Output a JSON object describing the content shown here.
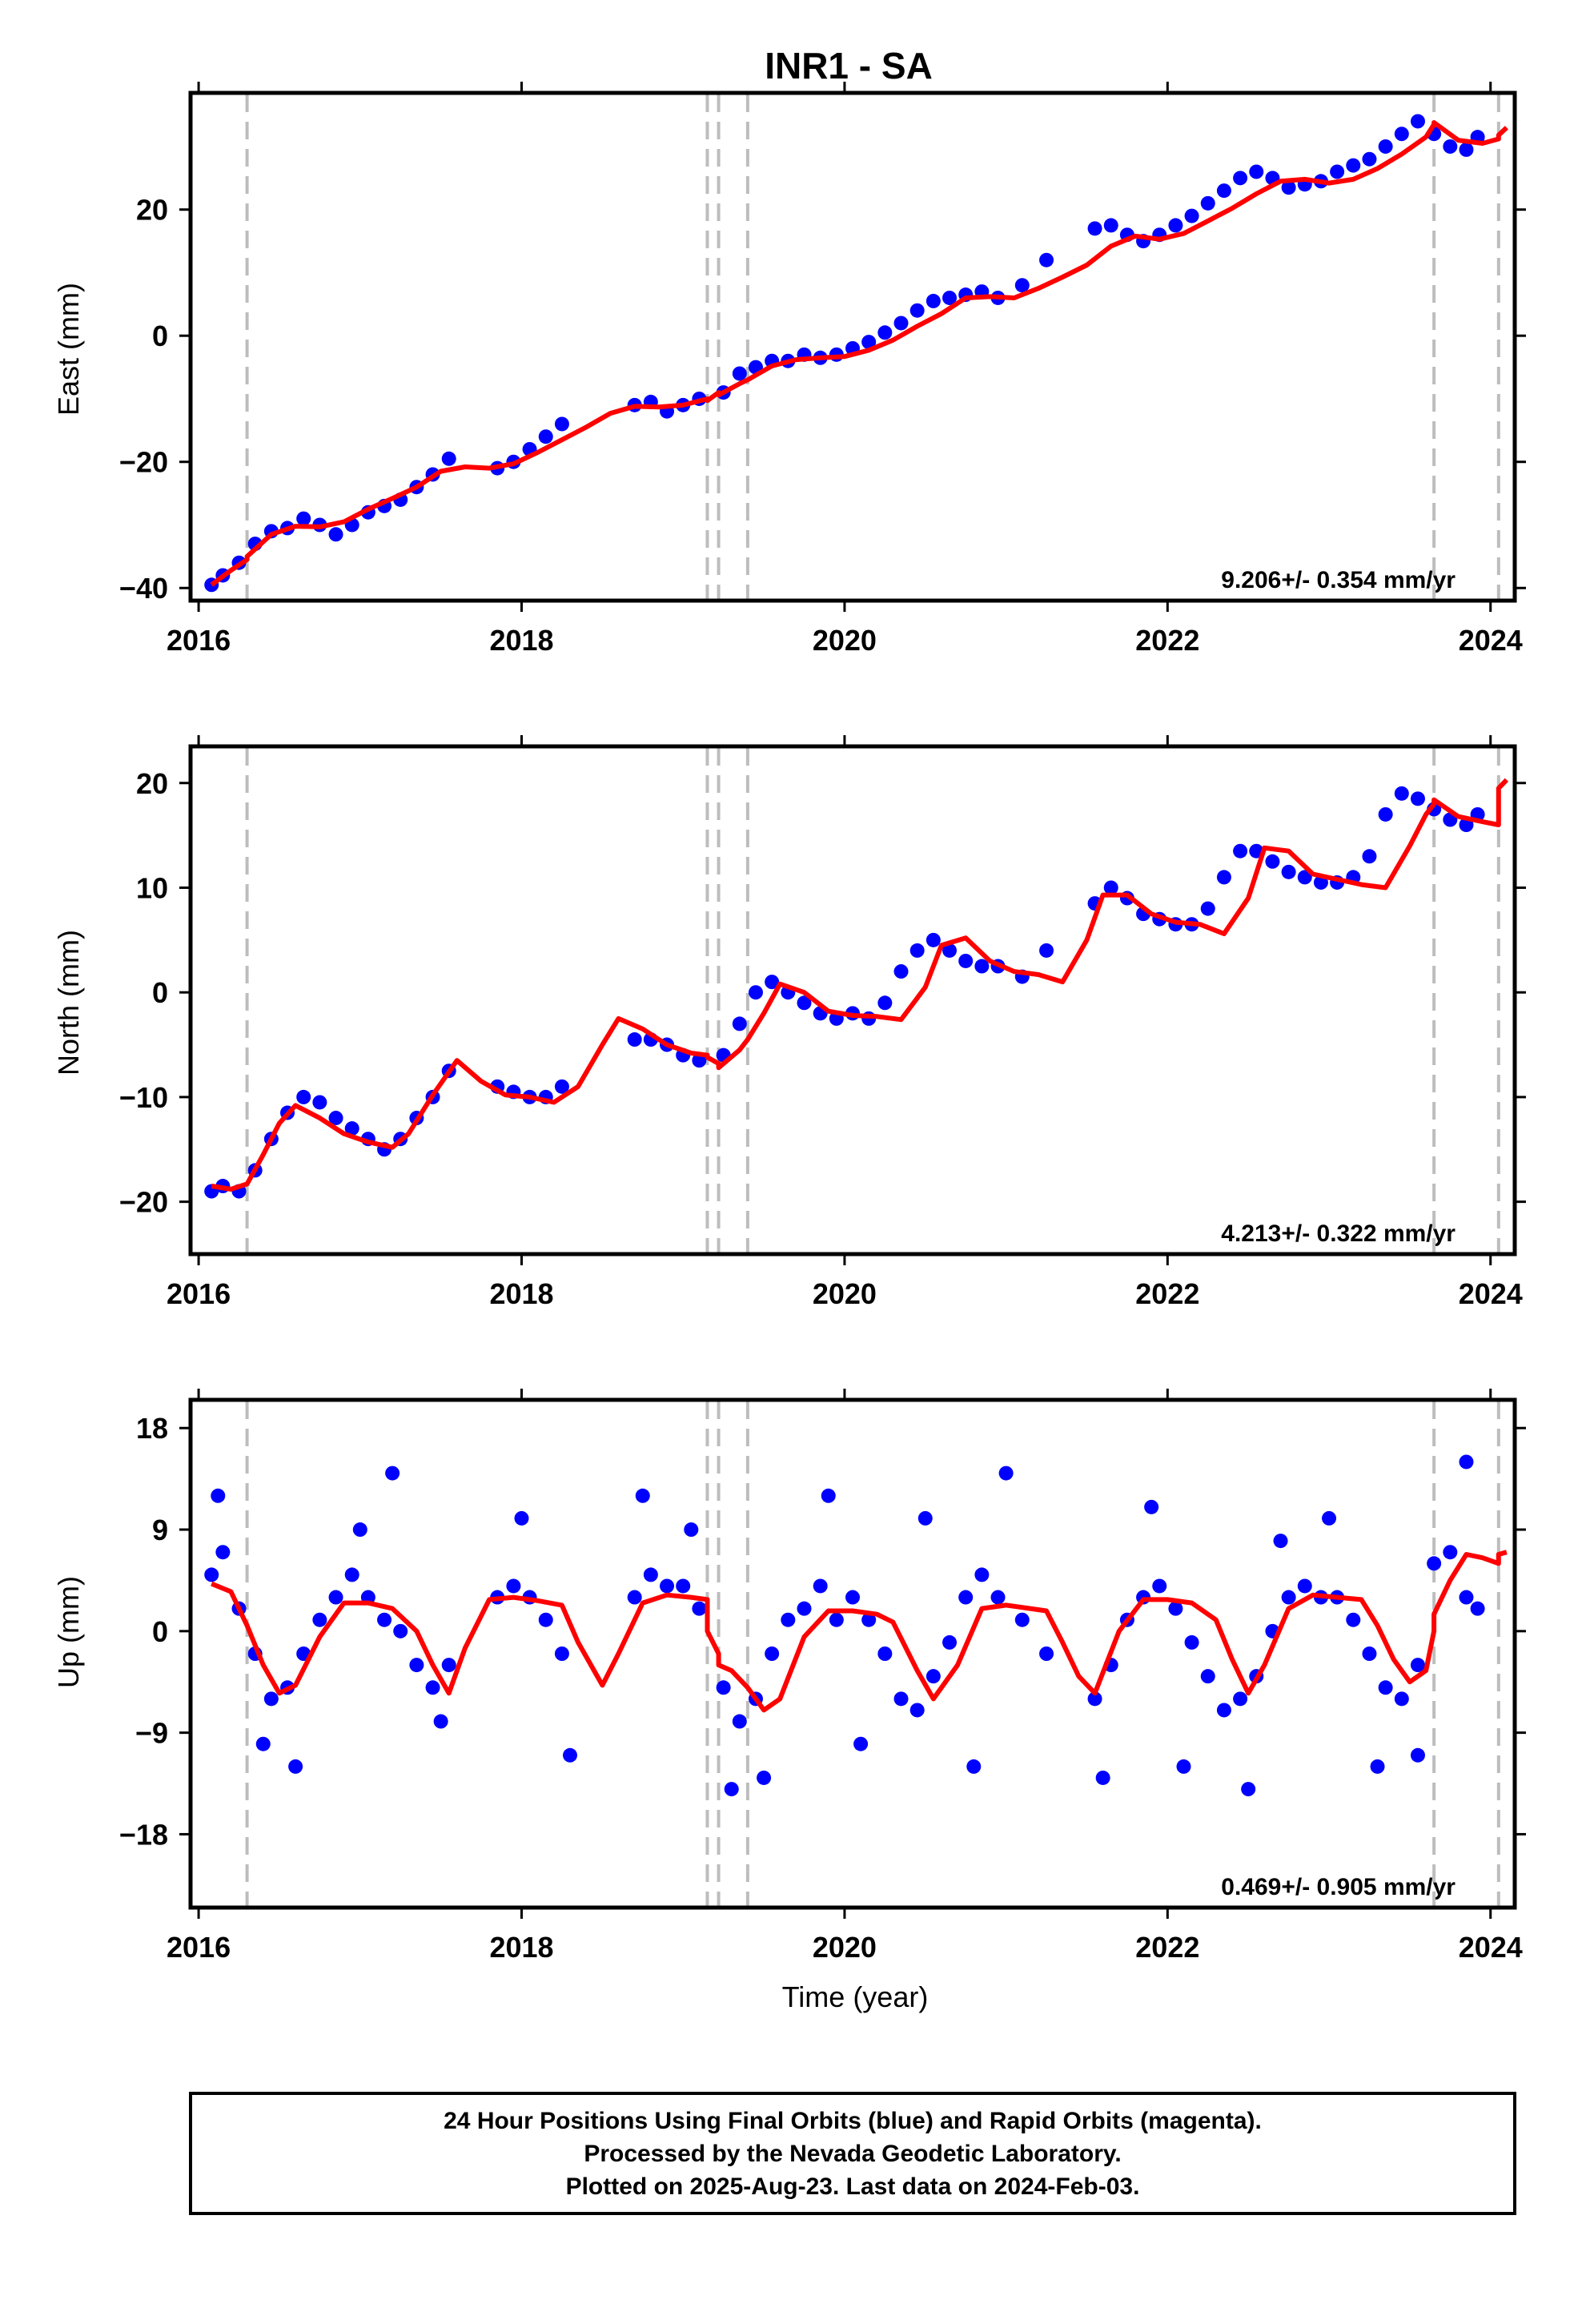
{
  "chart_data": [
    {
      "type": "scatter",
      "title": "INR1 - SA",
      "ylabel": "East (mm)",
      "xlabel": "",
      "xlim": [
        2015.95,
        2024.15
      ],
      "ylim": [
        -42,
        38.5
      ],
      "xticks": [
        2016,
        2018,
        2020,
        2022,
        2024
      ],
      "yticks": [
        -40,
        -20,
        0,
        20
      ],
      "ytick_labels": [
        "−40",
        "−20",
        "0",
        "20"
      ],
      "rate_text": "9.206+/- 0.354 mm/yr",
      "grid": false,
      "event_lines_x": [
        2016.3,
        2019.15,
        2019.22,
        2019.4,
        2023.65,
        2024.05
      ],
      "series": [
        {
          "kind": "points",
          "color": "#0000ff",
          "x": [
            2016.08,
            2016.15,
            2016.25,
            2016.35,
            2016.45,
            2016.55,
            2016.65,
            2016.75,
            2016.85,
            2016.95,
            2017.05,
            2017.15,
            2017.25,
            2017.35,
            2017.45,
            2017.55,
            2017.85,
            2017.95,
            2018.05,
            2018.15,
            2018.25,
            2018.7,
            2018.8,
            2018.9,
            2019.0,
            2019.1,
            2019.25,
            2019.35,
            2019.45,
            2019.55,
            2019.65,
            2019.75,
            2019.85,
            2019.95,
            2020.05,
            2020.15,
            2020.25,
            2020.35,
            2020.45,
            2020.55,
            2020.65,
            2020.75,
            2020.85,
            2020.95,
            2021.1,
            2021.25,
            2021.55,
            2021.65,
            2021.75,
            2021.85,
            2021.95,
            2022.05,
            2022.15,
            2022.25,
            2022.35,
            2022.45,
            2022.55,
            2022.65,
            2022.75,
            2022.85,
            2022.95,
            2023.05,
            2023.15,
            2023.25,
            2023.35,
            2023.45,
            2023.55,
            2023.65,
            2023.75,
            2023.85,
            2023.92
          ],
          "y": [
            -39.5,
            -38,
            -36,
            -33,
            -31,
            -30.5,
            -29,
            -30,
            -31.5,
            -30,
            -28,
            -27,
            -26,
            -24,
            -22,
            -19.5,
            -21,
            -20,
            -18,
            -16,
            -14,
            -11,
            -10.5,
            -12,
            -11,
            -10,
            -9,
            -6,
            -5,
            -4,
            -4,
            -3,
            -3.5,
            -3,
            -2,
            -1,
            0.5,
            2,
            4,
            5.5,
            6,
            6.5,
            7,
            6,
            8,
            12,
            17,
            17.5,
            16,
            15,
            16,
            17.5,
            19,
            21,
            23,
            25,
            26,
            25,
            23.5,
            24,
            24.5,
            26,
            27,
            28,
            30,
            32,
            34,
            32,
            30,
            29.5,
            31.5
          ]
        },
        {
          "kind": "model",
          "color": "#ff0000",
          "x": [
            2016.08,
            2016.2,
            2016.3,
            2016.3,
            2016.45,
            2016.6,
            2016.75,
            2016.9,
            2017.05,
            2017.2,
            2017.35,
            2017.5,
            2017.65,
            2017.8,
            2017.95,
            2018.1,
            2018.25,
            2018.4,
            2018.55,
            2018.7,
            2018.85,
            2019.0,
            2019.15,
            2019.15,
            2019.22,
            2019.22,
            2019.35,
            2019.4,
            2019.4,
            2019.55,
            2019.7,
            2019.85,
            2020.0,
            2020.15,
            2020.3,
            2020.45,
            2020.6,
            2020.75,
            2020.9,
            2021.05,
            2021.2,
            2021.35,
            2021.5,
            2021.65,
            2021.8,
            2021.95,
            2022.1,
            2022.25,
            2022.4,
            2022.55,
            2022.7,
            2022.85,
            2023.0,
            2023.15,
            2023.3,
            2023.45,
            2023.6,
            2023.65,
            2023.65,
            2023.8,
            2023.95,
            2024.05,
            2024.05,
            2024.1
          ],
          "y": [
            -39.5,
            -37.2,
            -35.5,
            -35.0,
            -31.5,
            -30.2,
            -30.3,
            -29.5,
            -27.5,
            -25.8,
            -24.0,
            -21.5,
            -20.8,
            -21.0,
            -20.3,
            -18.5,
            -16.5,
            -14.5,
            -12.3,
            -11.2,
            -11.3,
            -11.0,
            -10.0,
            -10.3,
            -9.0,
            -9.4,
            -7.6,
            -7.0,
            -7.0,
            -4.8,
            -3.8,
            -3.5,
            -3.3,
            -2.3,
            -0.7,
            1.5,
            3.5,
            6.0,
            6.2,
            6.0,
            7.5,
            9.3,
            11.2,
            14.2,
            15.8,
            15.3,
            16.2,
            18.2,
            20.2,
            22.5,
            24.5,
            24.8,
            24.2,
            24.8,
            26.5,
            28.8,
            31.5,
            33.5,
            33.8,
            31.0,
            30.5,
            31.2,
            31.8,
            33.0
          ]
        }
      ]
    },
    {
      "type": "scatter",
      "title": "",
      "ylabel": "North (mm)",
      "xlabel": "",
      "xlim": [
        2015.95,
        2024.15
      ],
      "ylim": [
        -25,
        23.5
      ],
      "xticks": [
        2016,
        2018,
        2020,
        2022,
        2024
      ],
      "yticks": [
        -20,
        -10,
        0,
        10,
        20
      ],
      "ytick_labels": [
        "−20",
        "−10",
        "0",
        "10",
        "20"
      ],
      "rate_text": "4.213+/- 0.322 mm/yr",
      "grid": false,
      "event_lines_x": [
        2016.3,
        2019.15,
        2019.22,
        2019.4,
        2023.65,
        2024.05
      ],
      "series": [
        {
          "kind": "points",
          "color": "#0000ff",
          "x": [
            2016.08,
            2016.15,
            2016.25,
            2016.35,
            2016.45,
            2016.55,
            2016.65,
            2016.75,
            2016.85,
            2016.95,
            2017.05,
            2017.15,
            2017.25,
            2017.35,
            2017.45,
            2017.55,
            2017.85,
            2017.95,
            2018.05,
            2018.15,
            2018.25,
            2018.7,
            2018.8,
            2018.9,
            2019.0,
            2019.1,
            2019.25,
            2019.35,
            2019.45,
            2019.55,
            2019.65,
            2019.75,
            2019.85,
            2019.95,
            2020.05,
            2020.15,
            2020.25,
            2020.35,
            2020.45,
            2020.55,
            2020.65,
            2020.75,
            2020.85,
            2020.95,
            2021.1,
            2021.25,
            2021.55,
            2021.65,
            2021.75,
            2021.85,
            2021.95,
            2022.05,
            2022.15,
            2022.25,
            2022.35,
            2022.45,
            2022.55,
            2022.65,
            2022.75,
            2022.85,
            2022.95,
            2023.05,
            2023.15,
            2023.25,
            2023.35,
            2023.45,
            2023.55,
            2023.65,
            2023.75,
            2023.85,
            2023.92
          ],
          "y": [
            -19,
            -18.5,
            -19,
            -17,
            -14,
            -11.5,
            -10,
            -10.5,
            -12,
            -13,
            -14,
            -15,
            -14,
            -12,
            -10,
            -7.5,
            -9,
            -9.5,
            -10,
            -10,
            -9,
            -4.5,
            -4.5,
            -5,
            -6,
            -6.5,
            -6,
            -3,
            0,
            1,
            0,
            -1,
            -2,
            -2.5,
            -2,
            -2.5,
            -1,
            2,
            4,
            5,
            4,
            3,
            2.5,
            2.5,
            1.5,
            4,
            8.5,
            10,
            9,
            7.5,
            7,
            6.5,
            6.5,
            8,
            11,
            13.5,
            13.5,
            12.5,
            11.5,
            11,
            10.5,
            10.5,
            11,
            13,
            17,
            19,
            18.5,
            17.5,
            16.5,
            16,
            17
          ]
        },
        {
          "kind": "model",
          "color": "#ff0000",
          "x": [
            2016.08,
            2016.2,
            2016.3,
            2016.4,
            2016.5,
            2016.6,
            2016.75,
            2016.9,
            2017.05,
            2017.2,
            2017.3,
            2017.45,
            2017.6,
            2017.75,
            2017.9,
            2018.05,
            2018.2,
            2018.35,
            2018.5,
            2018.6,
            2018.75,
            2018.9,
            2019.05,
            2019.15,
            2019.15,
            2019.22,
            2019.22,
            2019.35,
            2019.4,
            2019.5,
            2019.6,
            2019.75,
            2019.9,
            2020.05,
            2020.2,
            2020.35,
            2020.5,
            2020.6,
            2020.75,
            2020.9,
            2021.05,
            2021.2,
            2021.35,
            2021.5,
            2021.6,
            2021.75,
            2021.9,
            2022.05,
            2022.2,
            2022.35,
            2022.5,
            2022.6,
            2022.75,
            2022.9,
            2023.05,
            2023.2,
            2023.35,
            2023.5,
            2023.6,
            2023.65,
            2023.65,
            2023.8,
            2023.95,
            2024.05,
            2024.05,
            2024.1
          ],
          "y": [
            -18.5,
            -18.8,
            -18.3,
            -15.5,
            -12.5,
            -10.8,
            -12.0,
            -13.5,
            -14.3,
            -14.8,
            -13.5,
            -9.8,
            -6.5,
            -8.5,
            -9.8,
            -10.0,
            -10.5,
            -9.0,
            -5.0,
            -2.5,
            -3.5,
            -5.0,
            -5.8,
            -6.0,
            -6.2,
            -6.8,
            -7.2,
            -5.5,
            -4.5,
            -2.0,
            0.8,
            0.0,
            -1.8,
            -2.2,
            -2.3,
            -2.6,
            0.5,
            4.5,
            5.2,
            3.0,
            2.0,
            1.7,
            1.0,
            5.0,
            9.3,
            9.3,
            7.5,
            6.7,
            6.5,
            5.6,
            9.0,
            13.8,
            13.5,
            11.3,
            10.8,
            10.3,
            10.0,
            14.0,
            17.0,
            18.0,
            18.4,
            16.8,
            16.3,
            16.0,
            19.5,
            20.3
          ]
        }
      ]
    },
    {
      "type": "scatter",
      "title": "",
      "ylabel": "Up (mm)",
      "xlabel": "Time (year)",
      "xlim": [
        2015.95,
        2024.15
      ],
      "ylim": [
        -24.5,
        20.5
      ],
      "xticks": [
        2016,
        2018,
        2020,
        2022,
        2024
      ],
      "yticks": [
        -18,
        -9,
        0,
        9,
        18
      ],
      "ytick_labels": [
        "−18",
        "−9",
        "0",
        "9",
        "18"
      ],
      "rate_text": "0.469+/- 0.905 mm/yr",
      "grid": false,
      "event_lines_x": [
        2016.3,
        2019.15,
        2019.22,
        2019.4,
        2023.65,
        2024.05
      ],
      "series": [
        {
          "kind": "points",
          "color": "#0000ff",
          "x": [
            2016.08,
            2016.15,
            2016.25,
            2016.35,
            2016.45,
            2016.55,
            2016.65,
            2016.75,
            2016.85,
            2016.95,
            2017.05,
            2017.15,
            2017.25,
            2017.35,
            2017.45,
            2017.55,
            2017.85,
            2017.95,
            2018.05,
            2018.15,
            2018.25,
            2018.7,
            2018.8,
            2018.9,
            2019.0,
            2019.1,
            2019.25,
            2019.35,
            2019.45,
            2019.55,
            2019.65,
            2019.75,
            2019.85,
            2019.95,
            2020.05,
            2020.15,
            2020.25,
            2020.35,
            2020.45,
            2020.55,
            2020.65,
            2020.75,
            2020.85,
            2020.95,
            2021.1,
            2021.25,
            2021.55,
            2021.65,
            2021.75,
            2021.85,
            2021.95,
            2022.05,
            2022.15,
            2022.25,
            2022.35,
            2022.45,
            2022.55,
            2022.65,
            2022.75,
            2022.85,
            2022.95,
            2023.05,
            2023.15,
            2023.25,
            2023.35,
            2023.45,
            2023.55,
            2023.65,
            2023.75,
            2023.85,
            2023.92,
            2016.12,
            2016.4,
            2016.6,
            2017.0,
            2017.2,
            2017.5,
            2018.0,
            2018.3,
            2018.75,
            2019.05,
            2019.3,
            2019.5,
            2019.9,
            2020.1,
            2020.5,
            2020.8,
            2021.0,
            2021.6,
            2021.9,
            2022.1,
            2022.5,
            2022.7,
            2023.0,
            2023.3,
            2023.55,
            2023.85
          ],
          "y": [
            5,
            7,
            2,
            -2,
            -6,
            -5,
            -2,
            1,
            3,
            5,
            3,
            1,
            0,
            -3,
            -5,
            -3,
            3,
            4,
            3,
            1,
            -2,
            3,
            5,
            4,
            4,
            2,
            -5,
            -8,
            -6,
            -2,
            1,
            2,
            4,
            1,
            3,
            1,
            -2,
            -6,
            -7,
            -4,
            -1,
            3,
            5,
            3,
            1,
            -2,
            -6,
            -3,
            1,
            3,
            4,
            2,
            -1,
            -4,
            -7,
            -6,
            -4,
            0,
            3,
            4,
            3,
            3,
            1,
            -2,
            -5,
            -6,
            -3,
            6,
            7,
            3,
            2,
            12,
            -10,
            -12,
            9,
            14,
            -8,
            10,
            -11,
            12,
            9,
            -14,
            -13,
            12,
            -10,
            10,
            -12,
            14,
            -13,
            11,
            -12,
            -14,
            8,
            10,
            -12,
            -11,
            15
          ]
        },
        {
          "kind": "model",
          "color": "#ff0000",
          "x": [
            2016.08,
            2016.2,
            2016.3,
            2016.4,
            2016.5,
            2016.6,
            2016.75,
            2016.9,
            2017.05,
            2017.2,
            2017.35,
            2017.45,
            2017.55,
            2017.65,
            2017.8,
            2017.95,
            2018.1,
            2018.25,
            2018.35,
            2018.5,
            2018.6,
            2018.75,
            2018.9,
            2019.05,
            2019.15,
            2019.15,
            2019.22,
            2019.22,
            2019.3,
            2019.4,
            2019.4,
            2019.5,
            2019.6,
            2019.75,
            2019.9,
            2020.05,
            2020.2,
            2020.3,
            2020.45,
            2020.55,
            2020.7,
            2020.85,
            2021.0,
            2021.15,
            2021.25,
            2021.35,
            2021.45,
            2021.55,
            2021.7,
            2021.85,
            2022.0,
            2022.15,
            2022.3,
            2022.4,
            2022.5,
            2022.6,
            2022.75,
            2022.9,
            2023.05,
            2023.2,
            2023.3,
            2023.4,
            2023.5,
            2023.6,
            2023.65,
            2023.65,
            2023.75,
            2023.85,
            2023.95,
            2024.05,
            2024.05,
            2024.1
          ],
          "y": [
            4.2,
            3.5,
            0.5,
            -3.0,
            -5.5,
            -4.8,
            -0.5,
            2.5,
            2.5,
            2.0,
            0.0,
            -3.0,
            -5.5,
            -1.5,
            2.8,
            3.0,
            2.7,
            2.3,
            -1.0,
            -4.8,
            -2.0,
            2.5,
            3.2,
            3.0,
            2.8,
            0.0,
            -2.0,
            -3.0,
            -3.5,
            -5.0,
            -5.0,
            -7.0,
            -6.0,
            -0.5,
            1.8,
            1.8,
            1.5,
            0.8,
            -3.5,
            -6.0,
            -3.0,
            2.0,
            2.3,
            2.0,
            1.8,
            -1.0,
            -4.0,
            -5.5,
            0.0,
            2.8,
            2.8,
            2.5,
            1.0,
            -2.5,
            -5.5,
            -3.0,
            2.0,
            3.2,
            3.0,
            2.8,
            0.5,
            -2.5,
            -4.5,
            -3.5,
            0.0,
            1.5,
            4.5,
            6.8,
            6.5,
            6.0,
            6.8,
            7.0
          ]
        }
      ]
    }
  ],
  "caption": {
    "lines": [
      "24 Hour Positions Using Final Orbits (blue) and Rapid Orbits (magenta).",
      "Processed by the Nevada Geodetic Laboratory.",
      "Plotted on 2025-Aug-23. Last data on 2024-Feb-03."
    ]
  }
}
